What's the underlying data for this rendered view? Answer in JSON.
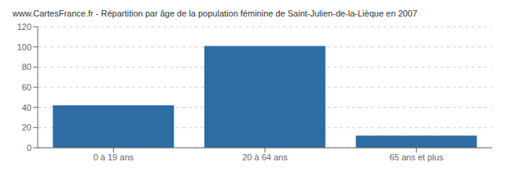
{
  "chart_data": {
    "type": "bar",
    "title": "www.CartesFrance.fr - Répartition par âge de la population féminine de Saint-Julien-de-la-Lièque en 2007",
    "categories": [
      "0 à 19 ans",
      "20 à 64 ans",
      "65 ans et plus"
    ],
    "values": [
      42,
      101,
      12
    ],
    "color": "#2e6da4",
    "ylim": [
      0,
      120
    ],
    "yticks": [
      0,
      20,
      40,
      60,
      80,
      100,
      120
    ],
    "grid": true
  }
}
